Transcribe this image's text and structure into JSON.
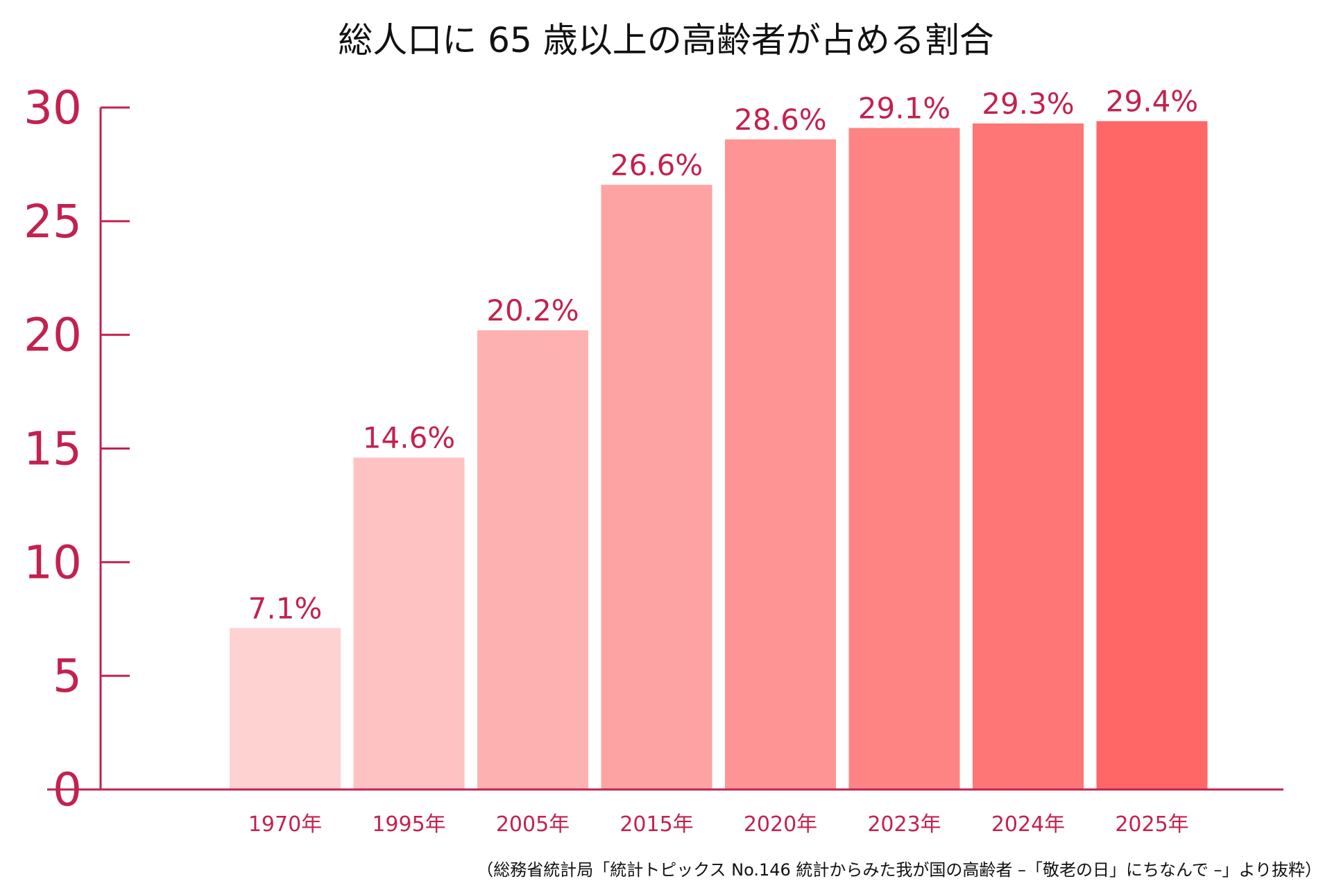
{
  "chart_data": {
    "type": "bar",
    "title": "総人口に 65 歳以上の高齢者が占める割合",
    "categories": [
      "1970年",
      "1995年",
      "2005年",
      "2015年",
      "2020年",
      "2023年",
      "2024年",
      "2025年"
    ],
    "values": [
      7.1,
      14.6,
      20.2,
      26.6,
      28.6,
      29.1,
      29.3,
      29.4
    ],
    "data_labels": [
      "7.1%",
      "14.6%",
      "20.2%",
      "26.6%",
      "28.6%",
      "29.1%",
      "29.3%",
      "29.4%"
    ],
    "xlabel": "",
    "ylabel": "",
    "ylim": [
      0,
      30
    ],
    "yticks": [
      0,
      5,
      10,
      15,
      20,
      25,
      30
    ],
    "ytick_labels": [
      "0",
      "5",
      "10",
      "15",
      "20",
      "25",
      "30"
    ],
    "grid": false,
    "legend": "none",
    "bar_colors": [
      "#ffd2d2",
      "#ffc2c2",
      "#fdb1b1",
      "#fda3a3",
      "#fe9494",
      "#fe8484",
      "#fe7676",
      "#ff6666"
    ],
    "axis_color": "#c2224f",
    "text_color": "#c2224f",
    "source": "（総務省統計局「統計トピックス No.146 統計からみた我が国の高齢者 –「敬老の日」にちなんで –」より抜粋）"
  }
}
